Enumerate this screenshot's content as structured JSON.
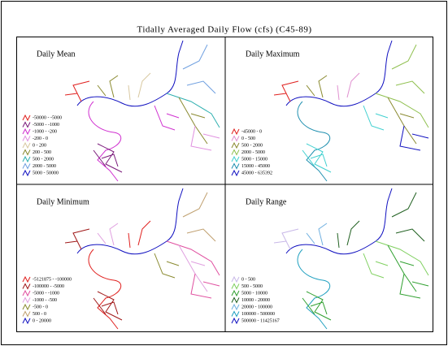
{
  "title": "Tidally Averaged Daily Flow (cfs) (C45-89)",
  "panels": [
    {
      "title": "Daily Mean",
      "legend": [
        {
          "label": "-50000 - -5000",
          "color": "#e0201e"
        },
        {
          "label": "-5000 - -1000",
          "color": "#7a1a7a"
        },
        {
          "label": "-1000 - -200",
          "color": "#d030d0"
        },
        {
          "label": "-200 - 0",
          "color": "#e090e0"
        },
        {
          "label": "0 - 200",
          "color": "#d8c8a0"
        },
        {
          "label": "200 - 500",
          "color": "#8a8a30"
        },
        {
          "label": "500 - 2000",
          "color": "#30b0b0"
        },
        {
          "label": "2000 - 5000",
          "color": "#70a0e0"
        },
        {
          "label": "5000 - 50000",
          "color": "#1010c0"
        }
      ]
    },
    {
      "title": "Daily Maximum",
      "legend": [
        {
          "label": "-45000 - 0",
          "color": "#e0201e"
        },
        {
          "label": "0 - 500",
          "color": "#e090d0"
        },
        {
          "label": "500 - 2000",
          "color": "#8a8a30"
        },
        {
          "label": "2000 - 5000",
          "color": "#90c050"
        },
        {
          "label": "5000 - 15000",
          "color": "#40d0d0"
        },
        {
          "label": "15000 - 45000",
          "color": "#2090b0"
        },
        {
          "label": "45000 - 635392",
          "color": "#1010c0"
        }
      ]
    },
    {
      "title": "Daily Minimum",
      "legend": [
        {
          "label": "-5121875 - -100000",
          "color": "#e0201e"
        },
        {
          "label": "-100000 - -5000",
          "color": "#a01818"
        },
        {
          "label": "-5000 - -1000",
          "color": "#e050a0"
        },
        {
          "label": "-1000 - -500",
          "color": "#e0a0e0"
        },
        {
          "label": "-500 - 0",
          "color": "#8a8a30"
        },
        {
          "label": "500 - 0",
          "color": "#c0a070"
        },
        {
          "label": "0 - 20000",
          "color": "#1010c0"
        }
      ]
    },
    {
      "title": "Daily Range",
      "legend": [
        {
          "label": "0 - 500",
          "color": "#c8b8e8"
        },
        {
          "label": "500 - 5000",
          "color": "#80d060"
        },
        {
          "label": "5000 - 10000",
          "color": "#30a030"
        },
        {
          "label": "10000 - 20000",
          "color": "#206020"
        },
        {
          "label": "20000 - 100000",
          "color": "#70b0e0"
        },
        {
          "label": "100000 - 500000",
          "color": "#20a0c0"
        },
        {
          "label": "500000 - 11425167",
          "color": "#1010c0"
        }
      ]
    }
  ]
}
